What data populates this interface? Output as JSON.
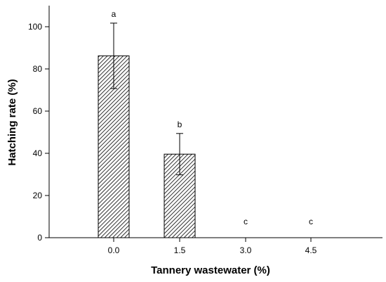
{
  "chart_data": {
    "type": "bar",
    "xlabel": "Tannery wastewater (%)",
    "ylabel": "Hatching rate (%)",
    "categories": [
      "0.0",
      "1.5",
      "3.0",
      "4.5"
    ],
    "values": [
      86.2,
      39.6,
      0,
      0
    ],
    "error": [
      15.5,
      9.8,
      0,
      0
    ],
    "significance_labels": [
      "a",
      "b",
      "c",
      "c"
    ],
    "ylim": [
      0,
      110
    ],
    "yticks": [
      0,
      20,
      40,
      60,
      80,
      100
    ],
    "grid": false,
    "legend": "none",
    "bar_fill": "diagonal-hatch",
    "colors": {
      "bar_stroke": "#000000",
      "hatch": "#000000",
      "background": "#ffffff"
    }
  }
}
